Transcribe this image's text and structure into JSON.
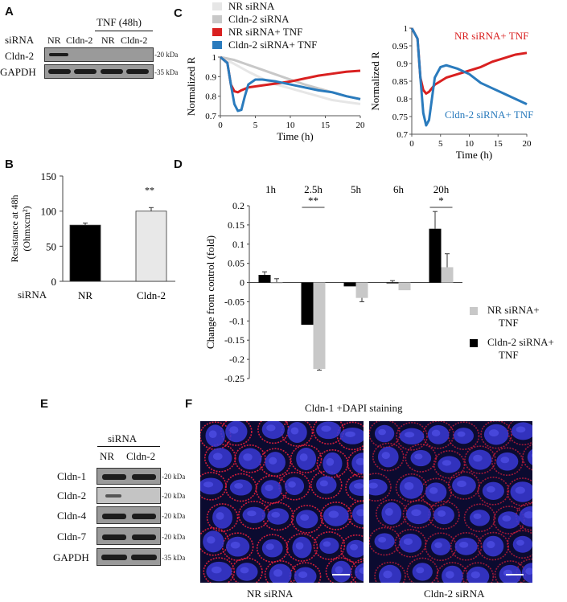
{
  "panel_A": {
    "letter": "A",
    "treatment_label": "TNF (48h)",
    "sirna_label": "siRNA",
    "lanes": [
      "NR",
      "Cldn-2",
      "NR",
      "Cldn-2"
    ],
    "rows": [
      {
        "label": "Cldn-2",
        "kda": "20 kDa"
      },
      {
        "label": "GAPDH",
        "kda": "35 kDa"
      }
    ]
  },
  "panel_B": {
    "letter": "B",
    "sirna_label": "siRNA",
    "significance": "**",
    "chart_data": {
      "type": "bar",
      "categories": [
        "NR",
        "Cldn-2"
      ],
      "values": [
        80,
        100
      ],
      "errors": [
        3,
        5
      ],
      "colors": [
        "#000000",
        "#e8e8e8"
      ],
      "ylabel": "Resistance at 48h (Ohmxcm²)",
      "ylabel_line1": "Resistance at 48h",
      "ylabel_line2": "(Ohmxcm²)",
      "yticks": [
        "0",
        "50",
        "100",
        "150"
      ],
      "ylim": [
        0,
        150
      ]
    }
  },
  "panel_C": {
    "letter": "C",
    "legend": [
      {
        "label": "NR siRNA",
        "color": "#e6e6e6"
      },
      {
        "label": "Cldn-2 siRNA",
        "color": "#c8c8c8"
      },
      {
        "label": "NR siRNA+ TNF",
        "color": "#d92020"
      },
      {
        "label": "Cldn-2 siRNA+ TNF",
        "color": "#2a7bbd"
      }
    ],
    "chart_data": [
      {
        "type": "line",
        "xlabel": "Time (h)",
        "ylabel": "Normalized R",
        "xlim": [
          0,
          20
        ],
        "ylim": [
          0.7,
          1
        ],
        "xticks": [
          "0",
          "5",
          "10",
          "15",
          "20"
        ],
        "yticks": [
          "0.7",
          "0.8",
          "0.9",
          "1"
        ],
        "series": [
          {
            "name": "NR siRNA",
            "color": "#e6e6e6",
            "x": [
              0,
              2,
              4,
              6,
              8,
              10,
              12,
              14,
              16,
              18,
              20
            ],
            "y": [
              1,
              0.965,
              0.925,
              0.89,
              0.86,
              0.84,
              0.82,
              0.8,
              0.78,
              0.77,
              0.76
            ]
          },
          {
            "name": "Cldn-2 siRNA",
            "color": "#c8c8c8",
            "x": [
              0,
              2,
              4,
              6,
              8,
              10,
              12,
              14,
              16,
              18,
              20
            ],
            "y": [
              1,
              0.985,
              0.96,
              0.935,
              0.91,
              0.885,
              0.86,
              0.84,
              0.82,
              0.8,
              0.785
            ]
          },
          {
            "name": "NR siRNA+ TNF",
            "color": "#d92020",
            "x": [
              0,
              1,
              1.5,
              2,
              2.5,
              3,
              4,
              6,
              8,
              10,
              12,
              14,
              16,
              18,
              20
            ],
            "y": [
              1,
              0.97,
              0.86,
              0.825,
              0.82,
              0.83,
              0.845,
              0.855,
              0.865,
              0.875,
              0.89,
              0.905,
              0.915,
              0.925,
              0.93
            ]
          },
          {
            "name": "Cldn-2 siRNA+ TNF",
            "color": "#2a7bbd",
            "x": [
              0,
              1,
              1.5,
              2,
              2.5,
              3,
              3.5,
              4,
              5,
              6,
              8,
              10,
              12,
              14,
              16,
              18,
              20
            ],
            "y": [
              1,
              0.97,
              0.86,
              0.76,
              0.725,
              0.73,
              0.8,
              0.86,
              0.885,
              0.885,
              0.875,
              0.86,
              0.845,
              0.83,
              0.82,
              0.8,
              0.785
            ]
          }
        ]
      },
      {
        "type": "line",
        "xlabel": "Time (h)",
        "ylabel": "Normalized R",
        "xlim": [
          0,
          20
        ],
        "ylim": [
          0.7,
          1
        ],
        "xticks": [
          "0",
          "5",
          "10",
          "15",
          "20"
        ],
        "yticks": [
          "0.7",
          "0.75",
          "0.8",
          "0.85",
          "0.9",
          "0.95",
          "1"
        ],
        "annotations": [
          "NR siRNA+ TNF",
          "Cldn-2 siRNA+ TNF"
        ],
        "series": [
          {
            "name": "NR siRNA+ TNF",
            "color": "#d92020",
            "x": [
              0,
              1,
              1.5,
              2,
              2.5,
              3,
              4,
              6,
              8,
              10,
              12,
              14,
              16,
              18,
              20
            ],
            "y": [
              1,
              0.97,
              0.86,
              0.825,
              0.815,
              0.82,
              0.84,
              0.86,
              0.87,
              0.88,
              0.89,
              0.905,
              0.915,
              0.925,
              0.93
            ]
          },
          {
            "name": "Cldn-2 siRNA+ TNF",
            "color": "#2a7bbd",
            "x": [
              0,
              1,
              1.5,
              2,
              2.5,
              3,
              3.5,
              4,
              5,
              6,
              8,
              10,
              12,
              14,
              16,
              18,
              20
            ],
            "y": [
              1,
              0.97,
              0.86,
              0.76,
              0.725,
              0.74,
              0.8,
              0.86,
              0.89,
              0.895,
              0.885,
              0.87,
              0.845,
              0.83,
              0.815,
              0.8,
              0.785
            ]
          }
        ]
      }
    ]
  },
  "panel_D": {
    "letter": "D",
    "timepoints": [
      "1h",
      "2.5h",
      "5h",
      "6h",
      "20h"
    ],
    "significance": [
      {
        "timepoint": "2.5h",
        "mark": "**"
      },
      {
        "timepoint": "20h",
        "mark": "*"
      }
    ],
    "legend": [
      {
        "label_line1": "NR siRNA+",
        "label_line2": "TNF",
        "color": "#c8c8c8"
      },
      {
        "label_line1": "Cldn-2 siRNA+",
        "label_line2": "TNF",
        "color": "#000000"
      }
    ],
    "chart_data": {
      "type": "bar",
      "categories": [
        "1h",
        "2.5h",
        "5h",
        "6h",
        "20h"
      ],
      "series": [
        {
          "name": "Cldn-2 siRNA+ TNF",
          "color": "#000000",
          "values": [
            0.02,
            -0.11,
            -0.01,
            0.0,
            0.14
          ],
          "errors": [
            0.008,
            0.0,
            0.0,
            0.005,
            0.045
          ]
        },
        {
          "name": "NR siRNA+ TNF",
          "color": "#c8c8c8",
          "values": [
            0.0,
            -0.225,
            -0.04,
            -0.02,
            0.04
          ],
          "errors": [
            0.01,
            0.003,
            0.01,
            0.0,
            0.035
          ]
        }
      ],
      "ylabel": "Change from control (fold)",
      "ylim": [
        -0.25,
        0.2
      ],
      "yticks": [
        "0.2",
        "0.15",
        "0.1",
        "0.05",
        "0",
        "-0.05",
        "-0.1",
        "-0.15",
        "-0.2",
        "-0.25"
      ]
    }
  },
  "panel_E": {
    "letter": "E",
    "sirna_label": "siRNA",
    "lanes": [
      "NR",
      "Cldn-2"
    ],
    "rows": [
      {
        "label": "Cldn-1",
        "kda": "20 kDa"
      },
      {
        "label": "Cldn-2",
        "kda": "20 kDa"
      },
      {
        "label": "Cldn-4",
        "kda": "20 kDa"
      },
      {
        "label": "Cldn-7",
        "kda": "20 kDa"
      },
      {
        "label": "GAPDH",
        "kda": "35 kDa"
      }
    ]
  },
  "panel_F": {
    "letter": "F",
    "title": "Cldn-1 +DAPI staining",
    "images": [
      {
        "caption": "NR siRNA"
      },
      {
        "caption": "Cldn-2 siRNA"
      }
    ]
  }
}
